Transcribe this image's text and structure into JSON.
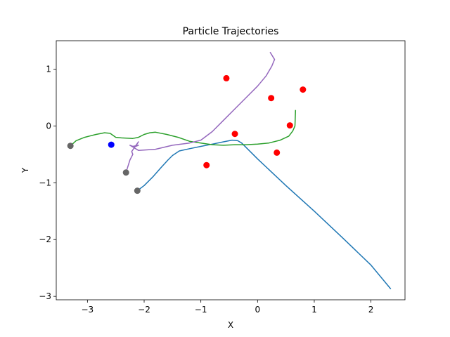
{
  "chart_data": {
    "type": "line",
    "title": "Particle Trajectories",
    "xlabel": "X",
    "ylabel": "Y",
    "xlim": [
      -3.55,
      2.6
    ],
    "ylim": [
      -3.06,
      1.5
    ],
    "xticks": [
      -3,
      -2,
      -1,
      0,
      1,
      2
    ],
    "yticks": [
      1,
      0,
      -1,
      -2,
      -3
    ],
    "xtick_labels": [
      "−3",
      "−2",
      "−1",
      "0",
      "1",
      "2"
    ],
    "ytick_labels": [
      "1",
      "0",
      "−1",
      "−2",
      "−3"
    ],
    "grid": false,
    "series": [
      {
        "color": "#1f77b4",
        "x": [
          -2.12,
          -2.0,
          -1.85,
          -1.7,
          -1.58,
          -1.5,
          -1.38,
          -1.2,
          -1.0,
          -0.8,
          -0.6,
          -0.45,
          -0.35,
          -0.28,
          0.0,
          0.5,
          1.0,
          1.5,
          2.0,
          2.35
        ],
        "y": [
          -1.14,
          -1.05,
          -0.9,
          -0.73,
          -0.6,
          -0.52,
          -0.44,
          -0.4,
          -0.36,
          -0.32,
          -0.28,
          -0.25,
          -0.26,
          -0.3,
          -0.58,
          -1.05,
          -1.5,
          -1.97,
          -2.45,
          -2.87
        ]
      },
      {
        "color": "#2ca02c",
        "x": [
          -3.3,
          -3.2,
          -3.05,
          -2.85,
          -2.7,
          -2.6,
          -2.5,
          -2.4,
          -2.2,
          -2.1,
          -2.0,
          -1.9,
          -1.8,
          -1.6,
          -1.4,
          -1.2,
          -1.0,
          -0.8,
          -0.6,
          -0.4,
          -0.2,
          0.0,
          0.2,
          0.4,
          0.55,
          0.62,
          0.66,
          0.67
        ],
        "y": [
          -0.35,
          -0.26,
          -0.2,
          -0.15,
          -0.12,
          -0.13,
          -0.2,
          -0.21,
          -0.22,
          -0.2,
          -0.15,
          -0.12,
          -0.11,
          -0.15,
          -0.2,
          -0.27,
          -0.3,
          -0.33,
          -0.34,
          -0.33,
          -0.33,
          -0.32,
          -0.3,
          -0.25,
          -0.18,
          -0.09,
          0.0,
          0.28
        ]
      },
      {
        "color": "#9467bd",
        "x": [
          -2.32,
          -2.25,
          -2.2,
          -2.22,
          -2.15,
          -2.1,
          -2.15,
          -2.1,
          -2.2,
          -2.25,
          -2.1,
          -1.8,
          -1.5,
          -1.2,
          -1.0,
          -0.8,
          -0.6,
          -0.4,
          -0.2,
          0.0,
          0.15,
          0.25,
          0.3,
          0.25,
          0.22
        ],
        "y": [
          -0.82,
          -0.6,
          -0.5,
          -0.45,
          -0.35,
          -0.28,
          -0.36,
          -0.34,
          -0.36,
          -0.34,
          -0.43,
          -0.41,
          -0.34,
          -0.3,
          -0.25,
          -0.1,
          0.1,
          0.3,
          0.5,
          0.7,
          0.88,
          1.05,
          1.17,
          1.25,
          1.3
        ]
      }
    ],
    "points": [
      {
        "x": -3.3,
        "y": -0.35,
        "color": "#666666"
      },
      {
        "x": -2.32,
        "y": -0.82,
        "color": "#666666"
      },
      {
        "x": -2.12,
        "y": -1.14,
        "color": "#666666"
      },
      {
        "x": -2.58,
        "y": -0.33,
        "color": "#0000ff"
      },
      {
        "x": -0.55,
        "y": 0.84,
        "color": "#ff0000"
      },
      {
        "x": 0.24,
        "y": 0.49,
        "color": "#ff0000"
      },
      {
        "x": 0.8,
        "y": 0.64,
        "color": "#ff0000"
      },
      {
        "x": 0.57,
        "y": 0.01,
        "color": "#ff0000"
      },
      {
        "x": -0.4,
        "y": -0.14,
        "color": "#ff0000"
      },
      {
        "x": 0.34,
        "y": -0.47,
        "color": "#ff0000"
      },
      {
        "x": -0.9,
        "y": -0.69,
        "color": "#ff0000"
      }
    ]
  }
}
